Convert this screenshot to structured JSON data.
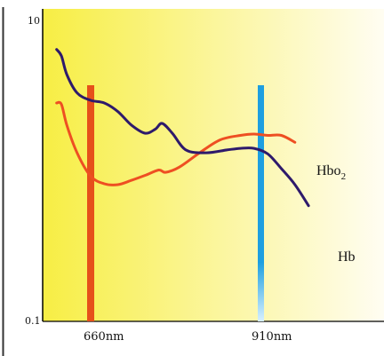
{
  "chart_data": {
    "type": "line",
    "title": "",
    "xlabel": "",
    "ylabel": "",
    "y_scale": "log",
    "ylim": [
      0.1,
      10
    ],
    "y_tick_labels": [
      "10",
      "0.1"
    ],
    "x_tick_labels": [
      "660nm",
      "910nm"
    ],
    "grid": false,
    "legend": "labels placed at line ends",
    "colors": {
      "background_left": "#f7ee44",
      "background_right": "#fffdf2",
      "hb": "#2e1a6b",
      "hbo2": "#ee4f22",
      "line_660": "#e6501a",
      "line_910": "#1e9fe0"
    },
    "reference_lines": [
      {
        "label": "660nm",
        "x": 660,
        "color": "#e6501a"
      },
      {
        "label": "910nm",
        "x": 910,
        "color": "#1e9fe0"
      }
    ],
    "series": [
      {
        "name": "Hb",
        "label_main": "Hb",
        "label_sub": "",
        "color": "#2e1a6b",
        "x": [
          610,
          617,
          625,
          640,
          660,
          680,
          700,
          720,
          740,
          755,
          765,
          780,
          800,
          830,
          860,
          880,
          900,
          920,
          940,
          960,
          980
        ],
        "y": [
          5.5,
          5.0,
          3.8,
          2.9,
          2.6,
          2.5,
          2.2,
          1.8,
          1.6,
          1.7,
          1.85,
          1.6,
          1.25,
          1.2,
          1.25,
          1.28,
          1.28,
          1.18,
          0.95,
          0.75,
          0.55
        ]
      },
      {
        "name": "Hbo2",
        "label_main": "Hbo",
        "label_sub": "2",
        "color": "#ee4f22",
        "x": [
          610,
          617,
          625,
          640,
          660,
          680,
          700,
          720,
          740,
          760,
          770,
          790,
          820,
          850,
          880,
          900,
          920,
          940,
          960
        ],
        "y": [
          2.5,
          2.45,
          1.8,
          1.2,
          0.85,
          0.76,
          0.75,
          0.8,
          0.86,
          0.93,
          0.9,
          0.97,
          1.2,
          1.45,
          1.55,
          1.58,
          1.55,
          1.55,
          1.4
        ]
      }
    ]
  }
}
